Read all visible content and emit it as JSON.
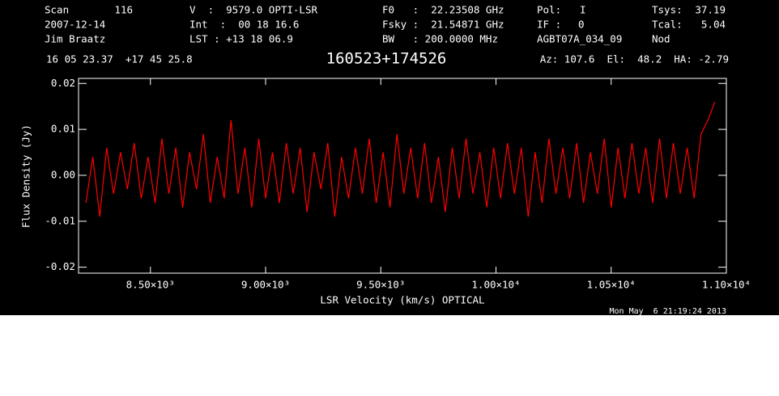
{
  "chart_data": {
    "type": "line",
    "header": {
      "scan_label": "Scan",
      "scan": "116",
      "date": "2007-12-14",
      "observer": "Jim Braatz",
      "v_label": "V  :",
      "v": "9579.0 OPTI-LSR",
      "int": "Int  :  00 18 16.6",
      "lst": "LST : +13 18 06.9",
      "f0": "F0   :  22.23508 GHz",
      "fsky": "Fsky :  21.54871 GHz",
      "bw": "BW   : 200.0000 MHz",
      "pol_label": "Pol:",
      "pol": "I",
      "if_label": "IF :",
      "if": "0",
      "project": "AGBT07A_034_09",
      "tsys_label": "Tsys:",
      "tsys": "37.19",
      "tcal_label": "Tcal:",
      "tcal": "5.04",
      "proc": "Nod",
      "coords": "16 05 23.37  +17 45 25.8",
      "pointing": "Az: 107.6  El:  48.2  HA: -2.79"
    },
    "title": "160523+174526",
    "footer": "Mon May  6 21:19:24 2013",
    "xlabel": "LSR Velocity (km/s) OPTICAL",
    "ylabel": "Flux Density (Jy)",
    "xlim": [
      8188,
      11000
    ],
    "ylim": [
      -0.0213,
      0.0211
    ],
    "xticks": [
      {
        "value": 8500,
        "label": "8.50×10³"
      },
      {
        "value": 9000,
        "label": "9.00×10³"
      },
      {
        "value": 9500,
        "label": "9.50×10³"
      },
      {
        "value": 10000,
        "label": "1.00×10⁴"
      },
      {
        "value": 10500,
        "label": "1.05×10⁴"
      },
      {
        "value": 11000,
        "label": "1.10×10⁴"
      }
    ],
    "yticks": [
      -0.02,
      -0.01,
      {
        "value": 0,
        "label": "0.00"
      },
      0.01,
      0.02
    ],
    "series": [
      {
        "color": "#ff0000",
        "x": [
          8220,
          8250,
          8280,
          8310,
          8340,
          8370,
          8400,
          8430,
          8460,
          8490,
          8520,
          8550,
          8580,
          8610,
          8640,
          8670,
          8700,
          8730,
          8760,
          8790,
          8820,
          8850,
          8880,
          8910,
          8940,
          8970,
          9000,
          9030,
          9060,
          9090,
          9120,
          9150,
          9180,
          9210,
          9240,
          9270,
          9300,
          9330,
          9360,
          9390,
          9420,
          9450,
          9480,
          9510,
          9540,
          9570,
          9600,
          9630,
          9660,
          9690,
          9720,
          9750,
          9780,
          9810,
          9840,
          9870,
          9900,
          9930,
          9960,
          9990,
          10020,
          10050,
          10080,
          10110,
          10140,
          10170,
          10200,
          10230,
          10260,
          10290,
          10320,
          10350,
          10380,
          10410,
          10440,
          10470,
          10500,
          10530,
          10560,
          10590,
          10620,
          10650,
          10680,
          10710,
          10740,
          10770,
          10800,
          10830,
          10860,
          10890,
          10920,
          10950
        ],
        "values": [
          -0.006,
          0.004,
          -0.009,
          0.006,
          -0.004,
          0.005,
          -0.003,
          0.007,
          -0.005,
          0.004,
          -0.006,
          0.008,
          -0.004,
          0.006,
          -0.007,
          0.005,
          -0.003,
          0.009,
          -0.006,
          0.004,
          -0.005,
          0.012,
          -0.004,
          0.006,
          -0.007,
          0.008,
          -0.005,
          0.005,
          -0.006,
          0.007,
          -0.004,
          0.006,
          -0.008,
          0.005,
          -0.003,
          0.007,
          -0.009,
          0.004,
          -0.005,
          0.006,
          -0.004,
          0.008,
          -0.006,
          0.005,
          -0.007,
          0.009,
          -0.004,
          0.006,
          -0.005,
          0.007,
          -0.006,
          0.004,
          -0.008,
          0.006,
          -0.005,
          0.008,
          -0.004,
          0.005,
          -0.007,
          0.006,
          -0.005,
          0.007,
          -0.004,
          0.006,
          -0.009,
          0.005,
          -0.006,
          0.008,
          -0.004,
          0.006,
          -0.005,
          0.007,
          -0.006,
          0.005,
          -0.004,
          0.008,
          -0.007,
          0.006,
          -0.005,
          0.007,
          -0.004,
          0.006,
          -0.006,
          0.008,
          -0.005,
          0.007,
          -0.004,
          0.006,
          -0.005,
          0.009,
          0.012,
          0.016
        ]
      }
    ]
  }
}
